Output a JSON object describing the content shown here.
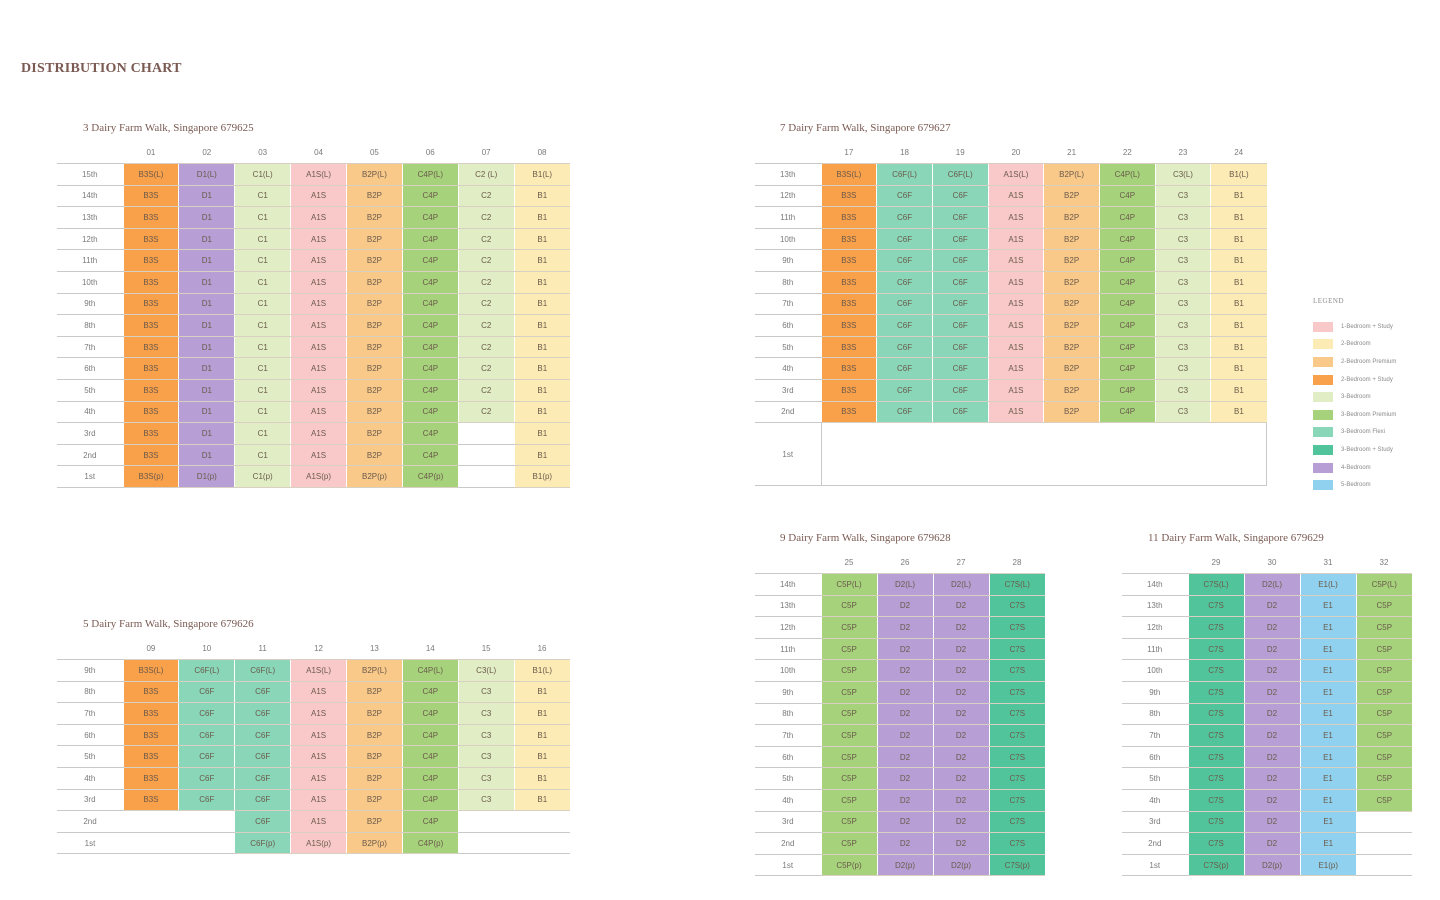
{
  "title": "DISTRIBUTION CHART",
  "colors": {
    "orange": "#f9a04a",
    "purple": "#b79ed4",
    "lightgreen": "#e1eec5",
    "pink": "#f9c9ca",
    "peach": "#f9c98a",
    "green": "#a6d27c",
    "cream": "#fcebb5",
    "teal": "#8ad6b9",
    "darkteal": "#52c49c",
    "blue": "#8fd1ef"
  },
  "legend": {
    "title": "LEGEND",
    "items": [
      {
        "label": "1-Bedroom + Study",
        "color": "#f9c9ca"
      },
      {
        "label": "2-Bedroom",
        "color": "#fcebb5"
      },
      {
        "label": "2-Bedroom Premium",
        "color": "#f9c98a"
      },
      {
        "label": "2-Bedroom + Study",
        "color": "#f9a04a"
      },
      {
        "label": "3-Bedroom",
        "color": "#e1eec5"
      },
      {
        "label": "3-Bedroom Premium",
        "color": "#a6d27c"
      },
      {
        "label": "3-Bedroom Flexi",
        "color": "#8ad6b9"
      },
      {
        "label": "3-Bedroom + Study",
        "color": "#52c49c"
      },
      {
        "label": "4-Bedroom",
        "color": "#b79ed4"
      },
      {
        "label": "5-Bedroom",
        "color": "#8fd1ef"
      }
    ]
  },
  "blocks": [
    {
      "id": "block3",
      "title": "3 Dairy Farm Walk, Singapore 679625",
      "columns": [
        {
          "label": "01",
          "color": "orange",
          "top": "B3S(L)",
          "mid": "B3S",
          "bottom": "B3S(p)"
        },
        {
          "label": "02",
          "color": "purple",
          "top": "D1(L)",
          "mid": "D1",
          "bottom": "D1(p)"
        },
        {
          "label": "03",
          "color": "lightgreen",
          "top": "C1(L)",
          "mid": "C1",
          "bottom": "C1(p)"
        },
        {
          "label": "04",
          "color": "pink",
          "top": "A1S(L)",
          "mid": "A1S",
          "bottom": "A1S(p)"
        },
        {
          "label": "05",
          "color": "peach",
          "top": "B2P(L)",
          "mid": "B2P",
          "bottom": "B2P(p)"
        },
        {
          "label": "06",
          "color": "green",
          "top": "C4P(L)",
          "mid": "C4P",
          "bottom": "C4P(p)"
        },
        {
          "label": "07",
          "color": "lightgreen",
          "top": "C2 (L)",
          "mid": "C2",
          "bottom": null,
          "lowest": 4
        },
        {
          "label": "08",
          "color": "cream",
          "top": "B1(L)",
          "mid": "B1",
          "bottom": "B1(p)"
        }
      ],
      "floors": [
        "15th",
        "14th",
        "13th",
        "12th",
        "11th",
        "10th",
        "9th",
        "8th",
        "7th",
        "6th",
        "5th",
        "4th",
        "3rd",
        "2nd",
        "1st"
      ]
    },
    {
      "id": "block7",
      "title": "7 Dairy Farm Walk, Singapore 679627",
      "columns": [
        {
          "label": "17",
          "color": "orange",
          "top": "B3S(L)",
          "mid": "B3S"
        },
        {
          "label": "18",
          "color": "teal",
          "top": "C6F(L)",
          "mid": "C6F"
        },
        {
          "label": "19",
          "color": "teal",
          "top": "C6F(L)",
          "mid": "C6F"
        },
        {
          "label": "20",
          "color": "pink",
          "top": "A1S(L)",
          "mid": "A1S"
        },
        {
          "label": "21",
          "color": "peach",
          "top": "B2P(L)",
          "mid": "B2P"
        },
        {
          "label": "22",
          "color": "green",
          "top": "C4P(L)",
          "mid": "C4P"
        },
        {
          "label": "23",
          "color": "lightgreen",
          "top": "C3(L)",
          "mid": "C3"
        },
        {
          "label": "24",
          "color": "cream",
          "top": "B1(L)",
          "mid": "B1"
        }
      ],
      "floors": [
        "13th",
        "12th",
        "11th",
        "10th",
        "9th",
        "8th",
        "7th",
        "6th",
        "5th",
        "4th",
        "3rd",
        "2nd",
        "1st"
      ]
    },
    {
      "id": "block5",
      "title": "5 Dairy Farm Walk, Singapore 679626",
      "columns": [
        {
          "label": "09",
          "color": "orange",
          "top": "B3S(L)",
          "mid": "B3S",
          "lowest": 3
        },
        {
          "label": "10",
          "color": "teal",
          "top": "C6F(L)",
          "mid": "C6F",
          "lowest": 3
        },
        {
          "label": "11",
          "color": "teal",
          "top": "C6F(L)",
          "mid": "C6F",
          "bottom": "C6F(p)"
        },
        {
          "label": "12",
          "color": "pink",
          "top": "A1S(L)",
          "mid": "A1S",
          "bottom": "A1S(p)"
        },
        {
          "label": "13",
          "color": "peach",
          "top": "B2P(L)",
          "mid": "B2P",
          "bottom": "B2P(p)"
        },
        {
          "label": "14",
          "color": "green",
          "top": "C4P(L)",
          "mid": "C4P",
          "bottom": "C4P(p)"
        },
        {
          "label": "15",
          "color": "lightgreen",
          "top": "C3(L)",
          "mid": "C3",
          "lowest": 3
        },
        {
          "label": "16",
          "color": "cream",
          "top": "B1(L)",
          "mid": "B1",
          "lowest": 3
        }
      ],
      "floors": [
        "9th",
        "8th",
        "7th",
        "6th",
        "5th",
        "4th",
        "3rd",
        "2nd",
        "1st"
      ]
    },
    {
      "id": "block9",
      "title": "9 Dairy Farm Walk, Singapore 679628",
      "columns": [
        {
          "label": "25",
          "color": "green",
          "top": "C5P(L)",
          "mid": "C5P",
          "bottom": "C5P(p)"
        },
        {
          "label": "26",
          "color": "purple",
          "top": "D2(L)",
          "mid": "D2",
          "bottom": "D2(p)"
        },
        {
          "label": "27",
          "color": "purple",
          "top": "D2(L)",
          "mid": "D2",
          "bottom": "D2(p)"
        },
        {
          "label": "28",
          "color": "darkteal",
          "top": "C7S(L)",
          "mid": "C7S",
          "bottom": "C7S(p)"
        }
      ],
      "floors": [
        "14th",
        "13th",
        "12th",
        "11th",
        "10th",
        "9th",
        "8th",
        "7th",
        "6th",
        "5th",
        "4th",
        "3rd",
        "2nd",
        "1st"
      ]
    },
    {
      "id": "block11",
      "title": "11 Dairy Farm Walk, Singapore 679629",
      "columns": [
        {
          "label": "29",
          "color": "darkteal",
          "top": "C7S(L)",
          "mid": "C7S",
          "bottom": "C7S(p)"
        },
        {
          "label": "30",
          "color": "purple",
          "top": "D2(L)",
          "mid": "D2",
          "bottom": "D2(p)"
        },
        {
          "label": "31",
          "color": "blue",
          "top": "E1(L)",
          "mid": "E1",
          "bottom": "E1(p)"
        },
        {
          "label": "32",
          "color": "green",
          "top": "C5P(L)",
          "mid": "C5P",
          "lowest": 4
        }
      ],
      "floors": [
        "14th",
        "13th",
        "12th",
        "11th",
        "10th",
        "9th",
        "8th",
        "7th",
        "6th",
        "5th",
        "4th",
        "3rd",
        "2nd",
        "1st"
      ]
    }
  ]
}
